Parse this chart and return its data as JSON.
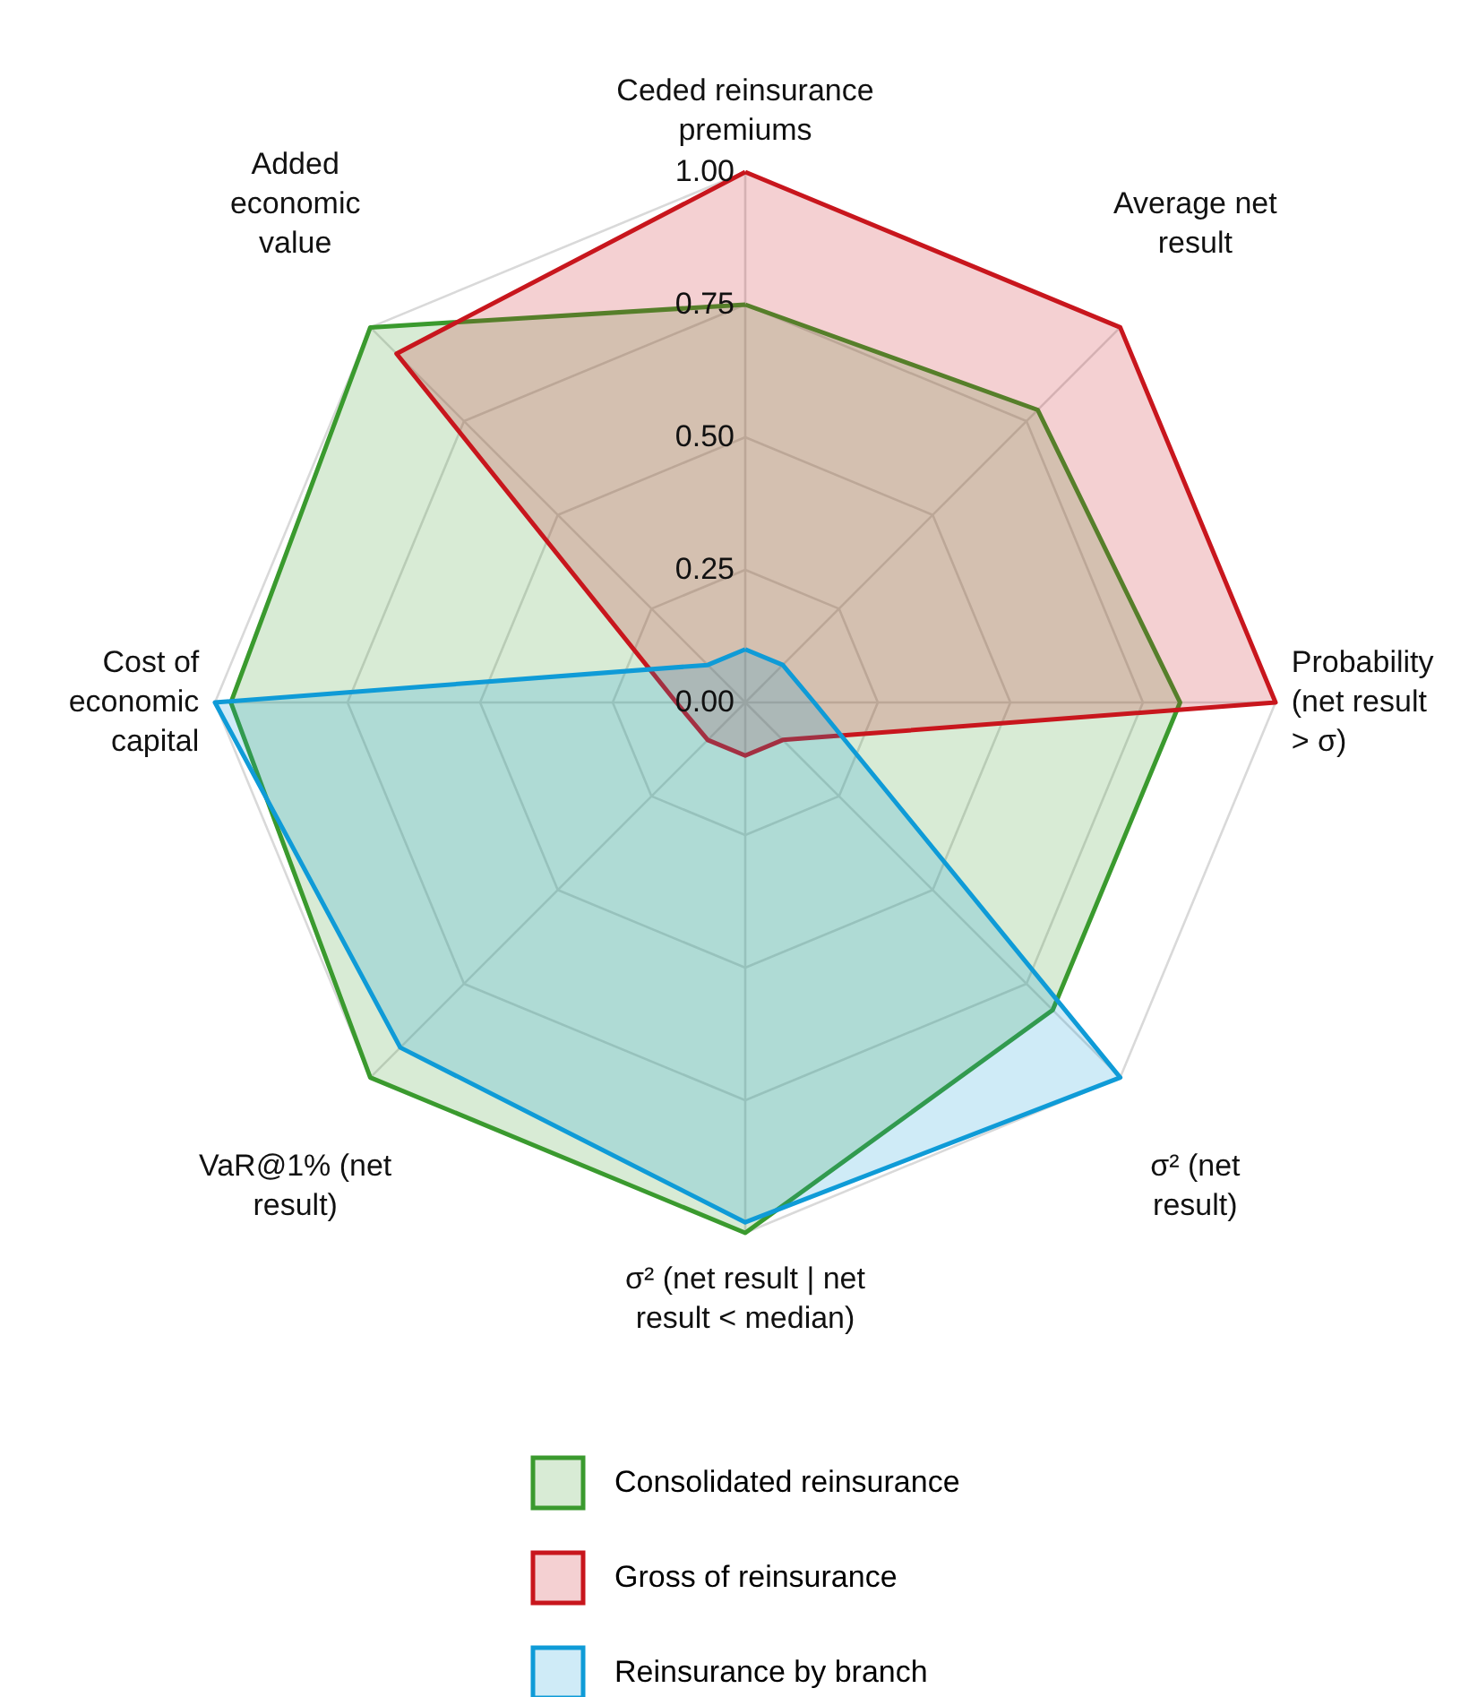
{
  "chart_data": {
    "type": "radar",
    "categories": [
      "Ceded reinsurance premiums",
      "Average net result",
      "Probability (net result > σ)",
      "σ² (net result)",
      "σ² (net result | net result < median)",
      "VaR@1% (net result)",
      "Cost of economic capital",
      "Added economic value"
    ],
    "series": [
      {
        "name": "Consolidated reinsurance",
        "color": "#3a9a2e",
        "values": [
          0.75,
          0.78,
          0.82,
          0.82,
          1.0,
          1.0,
          0.97,
          1.0
        ]
      },
      {
        "name": "Gross of reinsurance",
        "color": "#c8161d",
        "values": [
          1.0,
          1.0,
          1.0,
          0.1,
          0.1,
          0.1,
          0.13,
          0.93
        ]
      },
      {
        "name": "Reinsurance by branch",
        "color": "#0f9bd7",
        "values": [
          0.1,
          0.1,
          0.13,
          1.0,
          0.98,
          0.92,
          1.0,
          0.1
        ]
      }
    ],
    "ylim": [
      0,
      1
    ],
    "yticks": [
      {
        "value": 0,
        "label": "0.00"
      },
      {
        "value": 0.25,
        "label": "0.25"
      },
      {
        "value": 0.5,
        "label": "0.50"
      },
      {
        "value": 0.75,
        "label": "0.75"
      },
      {
        "value": 1,
        "label": "1.00"
      }
    ],
    "grid": true,
    "legend": "bottom"
  }
}
